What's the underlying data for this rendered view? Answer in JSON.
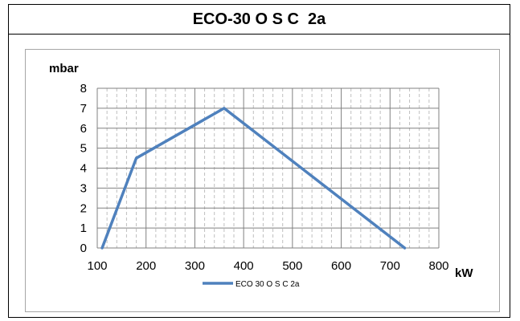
{
  "header": {
    "title": "ECO-30 O S C  2a"
  },
  "colors": {
    "series": "#4f81bd",
    "grid_major": "#808080",
    "grid_minor": "#bfbfbf",
    "border": "#a6a6a6"
  },
  "chart_data": {
    "type": "line",
    "title": "ECO-30 O S C  2a",
    "xlabel": "kW",
    "ylabel": "mbar",
    "xlim": [
      100,
      800
    ],
    "ylim": [
      0,
      8
    ],
    "x_ticks": [
      100,
      200,
      300,
      400,
      500,
      600,
      700,
      800
    ],
    "y_ticks": [
      0,
      1,
      2,
      3,
      4,
      5,
      6,
      7,
      8
    ],
    "grid": true,
    "legend": "bottom",
    "series": [
      {
        "name": "ECO 30 O S C 2a",
        "x": [
          110,
          180,
          360,
          730
        ],
        "y": [
          0,
          4.5,
          7,
          0
        ]
      }
    ]
  }
}
